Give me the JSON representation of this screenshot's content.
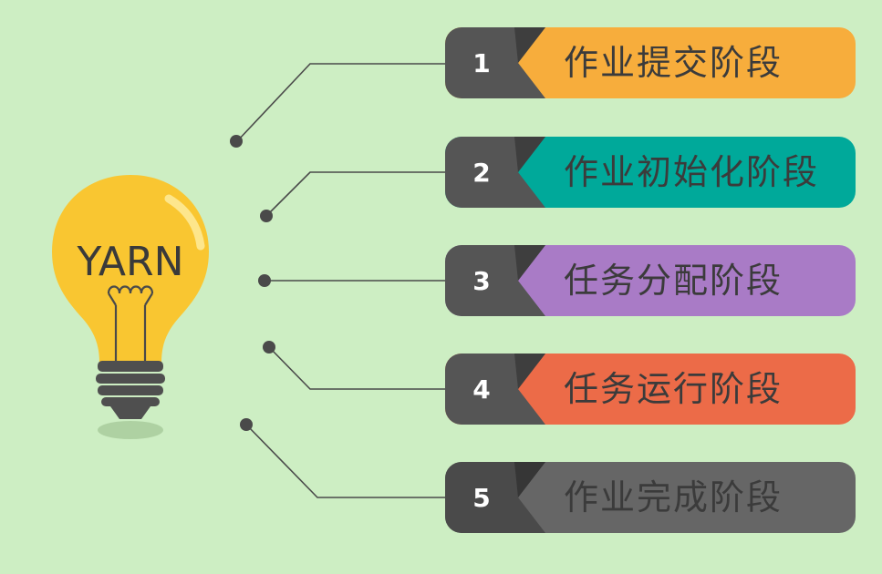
{
  "bulb": {
    "label": "YARN"
  },
  "stages": [
    {
      "number": "1",
      "label": "作业提交阶段",
      "color": "#f7ad3c"
    },
    {
      "number": "2",
      "label": "作业初始化阶段",
      "color": "#00a99a"
    },
    {
      "number": "3",
      "label": "任务分配阶段",
      "color": "#a97bc6"
    },
    {
      "number": "4",
      "label": "任务运行阶段",
      "color": "#ec6b48"
    },
    {
      "number": "5",
      "label": "作业完成阶段",
      "color": "#666666"
    }
  ],
  "colors": {
    "background": "#cdeec3",
    "number_block": "#555555",
    "number_block_dark": "#3e3e3e",
    "connector": "#4a4a4a",
    "bulb_glass": "#f9c631",
    "bulb_base": "#4f4f4f"
  }
}
